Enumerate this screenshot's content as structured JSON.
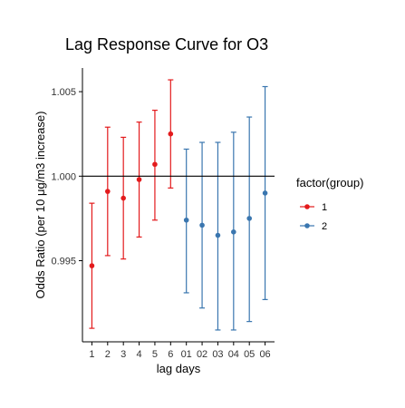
{
  "chart_data": {
    "type": "scatter",
    "title": "Lag Response Curve for O3",
    "xlabel": "lag days",
    "ylabel": "Odds Ratio (per 10 μg/m3 increase)",
    "categories": [
      "1",
      "2",
      "3",
      "4",
      "5",
      "6",
      "01",
      "02",
      "03",
      "04",
      "05",
      "06"
    ],
    "ylim": [
      0.9902,
      1.0064
    ],
    "yticks": [
      0.995,
      1.0,
      1.005
    ],
    "ytick_labels": [
      "0.995",
      "1.000",
      "1.005"
    ],
    "reference_line": 1.0,
    "legend": {
      "title": "factor(group)",
      "position": "right",
      "items": [
        {
          "label": "1",
          "color": "#e31a1c"
        },
        {
          "label": "2",
          "color": "#3a76af"
        }
      ]
    },
    "series": [
      {
        "name": "1",
        "color": "#e31a1c",
        "points": [
          {
            "x": "1",
            "y": 0.9947,
            "lower": 0.991,
            "upper": 0.9984
          },
          {
            "x": "2",
            "y": 0.9991,
            "lower": 0.9953,
            "upper": 1.0029
          },
          {
            "x": "3",
            "y": 0.9987,
            "lower": 0.9951,
            "upper": 1.0023
          },
          {
            "x": "4",
            "y": 0.9998,
            "lower": 0.9964,
            "upper": 1.0032
          },
          {
            "x": "5",
            "y": 1.0007,
            "lower": 0.9974,
            "upper": 1.0039
          },
          {
            "x": "6",
            "y": 1.0025,
            "lower": 0.9993,
            "upper": 1.0057
          }
        ]
      },
      {
        "name": "2",
        "color": "#3a76af",
        "points": [
          {
            "x": "01",
            "y": 0.9974,
            "lower": 0.9931,
            "upper": 1.0016
          },
          {
            "x": "02",
            "y": 0.9971,
            "lower": 0.9922,
            "upper": 1.002
          },
          {
            "x": "03",
            "y": 0.9965,
            "lower": 0.9909,
            "upper": 1.002
          },
          {
            "x": "04",
            "y": 0.9967,
            "lower": 0.9909,
            "upper": 1.0026
          },
          {
            "x": "05",
            "y": 0.9975,
            "lower": 0.9914,
            "upper": 1.0035
          },
          {
            "x": "06",
            "y": 0.999,
            "lower": 0.9927,
            "upper": 1.0053
          }
        ]
      }
    ]
  }
}
